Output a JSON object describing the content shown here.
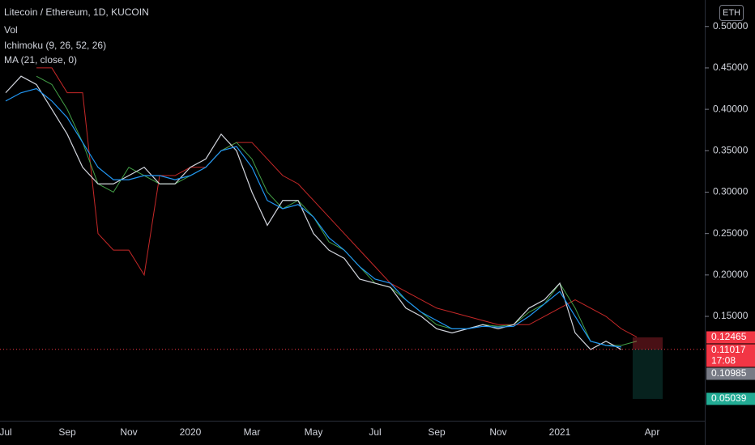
{
  "chart_data": {
    "type": "line",
    "title": "Litecoin / Ethereum, 1D, KUCOIN",
    "currency": "ETH",
    "volume_label": "Vol",
    "categories": [
      "Jul",
      null,
      null,
      null,
      "Sep",
      null,
      null,
      null,
      "Nov",
      null,
      null,
      null,
      "2020",
      null,
      null,
      null,
      "Mar",
      null,
      null,
      null,
      "May",
      null,
      null,
      null,
      "Jul",
      null,
      null,
      null,
      "Sep",
      null,
      null,
      null,
      "Nov",
      null,
      null,
      null,
      "2021",
      null,
      null,
      null,
      null,
      null,
      "Apr"
    ],
    "values": [
      0.42,
      0.44,
      0.43,
      0.4,
      0.37,
      0.33,
      0.31,
      0.31,
      0.32,
      0.33,
      0.31,
      0.31,
      0.33,
      0.34,
      0.37,
      0.35,
      0.3,
      0.26,
      0.29,
      0.29,
      0.25,
      0.23,
      0.22,
      0.195,
      0.19,
      0.185,
      0.16,
      0.15,
      0.135,
      0.13,
      0.135,
      0.14,
      0.135,
      0.14,
      0.16,
      0.17,
      0.19,
      0.13,
      0.11,
      0.12,
      0.11,
      null,
      null
    ],
    "color": "#d1d4dc",
    "series": [
      {
        "name": "Ichimoku (9, 26, 52, 26)",
        "color": "#43a047",
        "values": [
          null,
          null,
          0.44,
          0.43,
          0.4,
          0.36,
          0.31,
          0.3,
          0.33,
          0.32,
          0.31,
          0.31,
          0.32,
          0.33,
          0.35,
          0.36,
          0.34,
          0.3,
          0.28,
          0.29,
          0.27,
          0.24,
          0.23,
          0.21,
          0.19,
          0.185,
          0.17,
          0.155,
          0.14,
          0.135,
          0.135,
          0.14,
          0.138,
          0.14,
          0.155,
          0.165,
          0.19,
          0.16,
          0.12,
          0.115,
          0.115,
          0.12,
          null
        ],
        "color_b": "#c62828",
        "values_b": [
          null,
          null,
          0.45,
          0.45,
          0.42,
          0.42,
          0.25,
          0.23,
          0.23,
          0.2,
          0.32,
          0.32,
          0.33,
          0.33,
          0.35,
          0.36,
          0.36,
          0.34,
          0.32,
          0.31,
          0.29,
          0.27,
          0.25,
          0.23,
          0.21,
          0.19,
          0.18,
          0.17,
          0.16,
          0.155,
          0.15,
          0.145,
          0.14,
          0.14,
          0.14,
          0.15,
          0.16,
          0.17,
          0.16,
          0.15,
          0.135,
          0.125,
          null
        ]
      },
      {
        "name": "MA (21, close, 0)",
        "color": "#2196f3",
        "values": [
          0.41,
          0.42,
          0.425,
          0.41,
          0.39,
          0.36,
          0.33,
          0.315,
          0.315,
          0.32,
          0.32,
          0.315,
          0.32,
          0.33,
          0.35,
          0.355,
          0.33,
          0.29,
          0.28,
          0.285,
          0.27,
          0.245,
          0.23,
          0.21,
          0.195,
          0.19,
          0.17,
          0.155,
          0.145,
          0.135,
          0.135,
          0.138,
          0.137,
          0.138,
          0.15,
          0.165,
          0.18,
          0.15,
          0.12,
          0.115,
          0.113,
          null,
          null
        ]
      }
    ],
    "ylim": [
      0.024,
      0.532
    ],
    "yticks": [
      {
        "value": 0.5,
        "label": "0.50000"
      },
      {
        "value": 0.45,
        "label": "0.45000"
      },
      {
        "value": 0.4,
        "label": "0.40000"
      },
      {
        "value": 0.35,
        "label": "0.35000"
      },
      {
        "value": 0.3,
        "label": "0.30000"
      },
      {
        "value": 0.25,
        "label": "0.25000"
      },
      {
        "value": 0.2,
        "label": "0.20000"
      },
      {
        "value": 0.15,
        "label": "0.15000"
      }
    ],
    "grid": false,
    "price_labels": [
      {
        "value": 0.12465,
        "color": "#f23645"
      },
      {
        "value": 0.11017,
        "color": "#f23645",
        "countdown": "17:08"
      },
      {
        "value": 0.10985,
        "color": "#787b86"
      },
      {
        "value": 0.05039,
        "color": "#22ab94"
      }
    ]
  }
}
